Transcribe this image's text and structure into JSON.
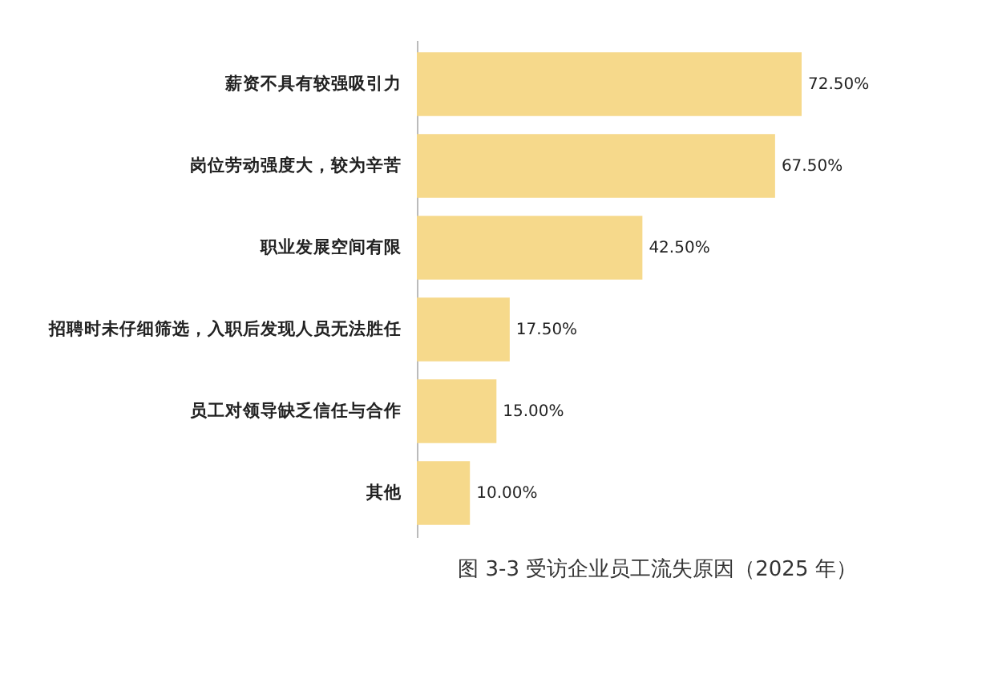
{
  "chart_data": {
    "type": "bar",
    "orientation": "horizontal",
    "title": "图 3-3  受访企业员工流失原因（2025 年）",
    "categories": [
      "薪资不具有较强吸引力",
      "岗位劳动强度大，较为辛苦",
      "职业发展空间有限",
      "招聘时未仔细筛选，入职后发现人员无法胜任",
      "员工对领导缺乏信任与合作",
      "其他"
    ],
    "values": [
      72.5,
      67.5,
      42.5,
      17.5,
      15.0,
      10.0
    ],
    "value_labels": [
      "72.50%",
      "67.50%",
      "42.50%",
      "17.50%",
      "15.00%",
      "10.00%"
    ],
    "color": "#f6d98b"
  }
}
